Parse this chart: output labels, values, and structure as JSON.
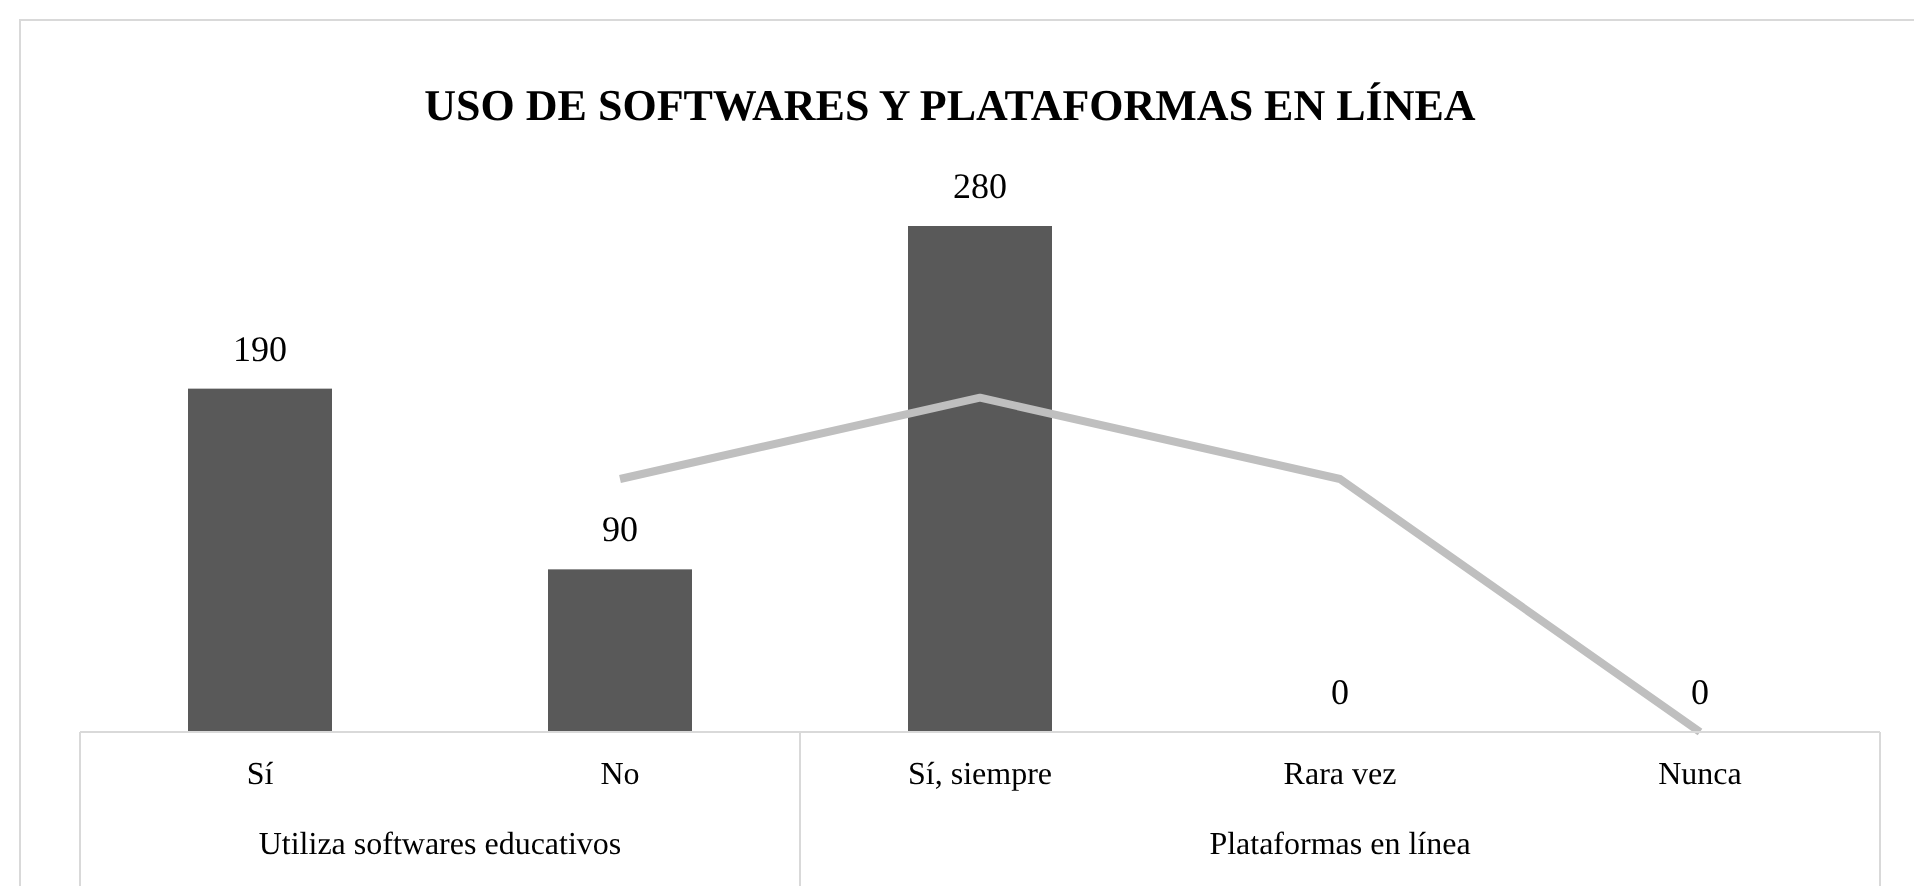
{
  "chart_data": {
    "type": "bar",
    "title": "USO DE SOFTWARES Y PLATAFORMAS EN LÍNEA",
    "categories": [
      "Sí",
      "No",
      "Sí, siempre",
      "Rara vez",
      "Nunca"
    ],
    "series": [
      {
        "color": "#595959",
        "values": [
          190,
          90,
          280,
          0,
          0
        ],
        "value_labels": [
          "190",
          "90",
          "280",
          "0",
          "0"
        ]
      },
      {
        "type": "line",
        "color": "#bfbfbf",
        "values": [
          null,
          140,
          185,
          140,
          0
        ]
      }
    ],
    "annotations": [
      "Utiliza softwares educativos",
      "Plataformas en línea"
    ]
  }
}
